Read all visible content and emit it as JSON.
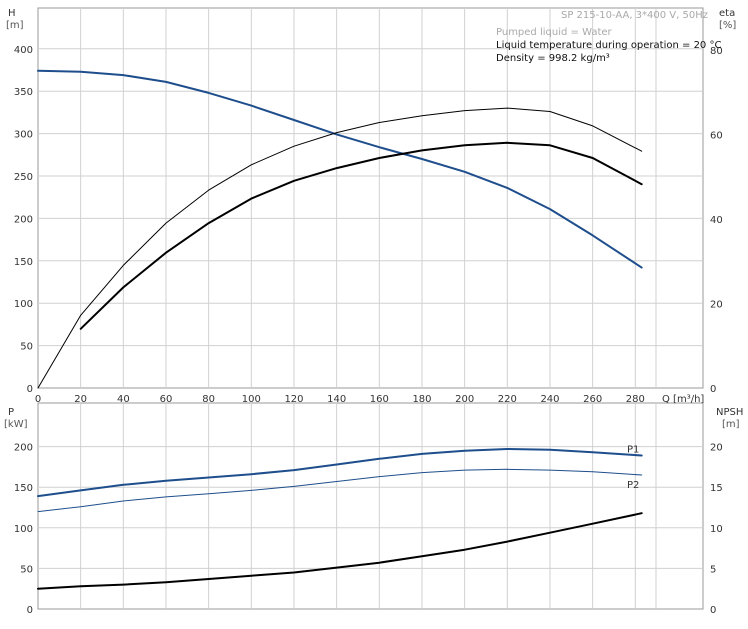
{
  "header": {
    "model": "SP 215-10-AA, 3*400 V, 50Hz",
    "liquid": "Pumped liquid = Water",
    "temperature": "Liquid temperature during operation = 20 °C",
    "density": "Density = 998.2 kg/m³"
  },
  "chart_data": [
    {
      "type": "line",
      "xlabel": "Q [m³/h]",
      "xlim": [
        0,
        300
      ],
      "x_ticks": [
        "0",
        "20",
        "40",
        "60",
        "80",
        "100",
        "120",
        "140",
        "160",
        "180",
        "200",
        "220",
        "240",
        "260",
        "280"
      ],
      "left_axis": {
        "label": "H",
        "unit": "[m]",
        "ylim": [
          0,
          400
        ],
        "ticks": [
          "0",
          "50",
          "100",
          "150",
          "200",
          "250",
          "300",
          "350",
          "400"
        ]
      },
      "right_axis": {
        "label": "eta",
        "unit": "[%]",
        "ylim": [
          0,
          100
        ],
        "ticks": [
          "0",
          "20",
          "40",
          "60",
          "80",
          "100"
        ]
      },
      "grid": true,
      "colors": {
        "head": "#1f4e8c",
        "eta": "#000000"
      },
      "series": [
        {
          "axis": "left",
          "color": "#1f4e8c",
          "width": 2,
          "x": [
            0,
            20,
            40,
            60,
            80,
            100,
            120,
            140,
            160,
            180,
            200,
            220,
            240,
            260,
            283
          ],
          "y": [
            374,
            373,
            369,
            361,
            348,
            333,
            316,
            299,
            284,
            270,
            255,
            236,
            211,
            180,
            142
          ]
        },
        {
          "axis": "right",
          "color": "#000000",
          "width": 1,
          "x": [
            0,
            20,
            40,
            60,
            80,
            100,
            120,
            140,
            160,
            180,
            200,
            220,
            240,
            260,
            283
          ],
          "y": [
            0,
            17.2,
            29,
            39,
            46.8,
            52.8,
            57.2,
            60.4,
            62.8,
            64.4,
            65.6,
            66.2,
            65.4,
            62,
            56
          ]
        },
        {
          "axis": "right",
          "color": "#000000",
          "width": 2,
          "x": [
            20,
            40,
            60,
            80,
            100,
            120,
            140,
            160,
            180,
            200,
            220,
            240,
            260,
            283
          ],
          "y": [
            14,
            23.8,
            32,
            39,
            44.8,
            49,
            52,
            54.4,
            56.2,
            57.4,
            58,
            57.4,
            54.4,
            48.2
          ]
        }
      ]
    },
    {
      "type": "line",
      "xlim": [
        0,
        300
      ],
      "left_axis": {
        "label": "P",
        "unit": "[kW]",
        "ylim": [
          0,
          250
        ],
        "ticks": [
          "0",
          "50",
          "100",
          "150",
          "200"
        ]
      },
      "right_axis": {
        "label": "NPSH",
        "unit": "[m]",
        "ylim": [
          0,
          25
        ],
        "ticks": [
          "0",
          "5",
          "10",
          "15",
          "20"
        ]
      },
      "grid": true,
      "series": [
        {
          "name": "P1",
          "axis": "left",
          "color": "#1f4e8c",
          "width": 2,
          "x": [
            0,
            20,
            40,
            60,
            80,
            100,
            120,
            140,
            160,
            180,
            200,
            220,
            240,
            260,
            283
          ],
          "y": [
            139,
            146,
            153,
            158,
            162,
            166,
            171,
            178,
            185,
            191,
            195,
            197,
            196,
            193,
            189
          ]
        },
        {
          "name": "P2",
          "axis": "left",
          "color": "#1f4e8c",
          "width": 1,
          "x": [
            0,
            20,
            40,
            60,
            80,
            100,
            120,
            140,
            160,
            180,
            200,
            220,
            240,
            260,
            283
          ],
          "y": [
            120,
            126,
            133,
            138,
            142,
            146,
            151,
            157,
            163,
            168,
            171,
            172,
            171,
            169,
            165
          ]
        },
        {
          "axis": "right",
          "color": "#000000",
          "width": 2,
          "x": [
            0,
            20,
            40,
            60,
            80,
            100,
            120,
            140,
            160,
            180,
            200,
            220,
            240,
            260,
            283
          ],
          "y": [
            2.5,
            2.8,
            3.0,
            3.3,
            3.7,
            4.1,
            4.5,
            5.1,
            5.7,
            6.5,
            7.3,
            8.3,
            9.4,
            10.5,
            11.8
          ]
        }
      ]
    }
  ]
}
